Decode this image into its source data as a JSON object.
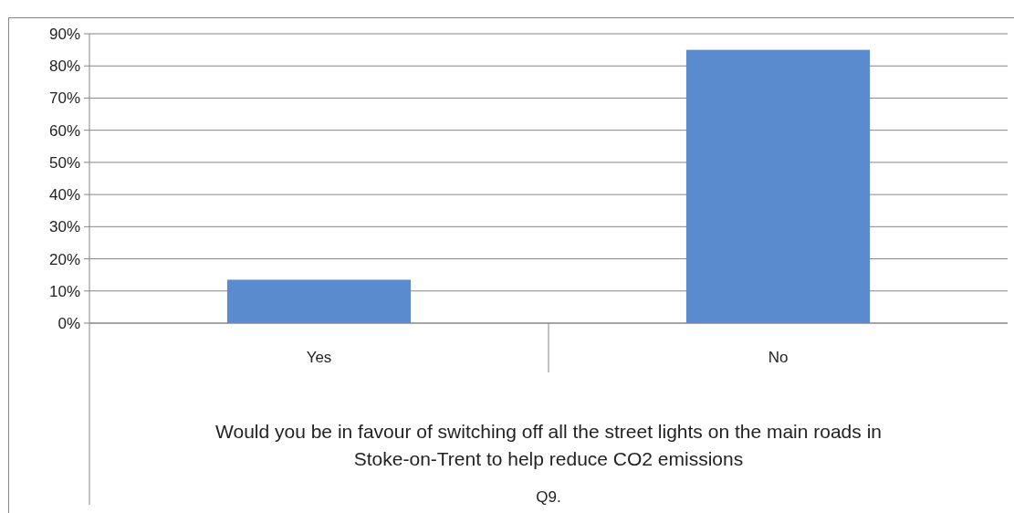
{
  "chart_data": {
    "type": "bar",
    "categories": [
      "Yes",
      "No"
    ],
    "values": [
      13.5,
      85
    ],
    "color": "#5a8bcf",
    "xlabel": "Would you be in favour of switching off all the street lights on the main roads in Stoke-on-Trent to help reduce CO2 emissions",
    "annotations": [
      "Q9."
    ],
    "ylim": [
      0,
      90
    ],
    "yticks": [
      {
        "value": 0,
        "label": "0%"
      },
      {
        "value": 10,
        "label": "10%"
      },
      {
        "value": 20,
        "label": "20%"
      },
      {
        "value": 30,
        "label": "30%"
      },
      {
        "value": 40,
        "label": "40%"
      },
      {
        "value": 50,
        "label": "50%"
      },
      {
        "value": 60,
        "label": "60%"
      },
      {
        "value": 70,
        "label": "70%"
      },
      {
        "value": 80,
        "label": "80%"
      },
      {
        "value": 90,
        "label": "90%"
      }
    ],
    "grid": "y"
  }
}
